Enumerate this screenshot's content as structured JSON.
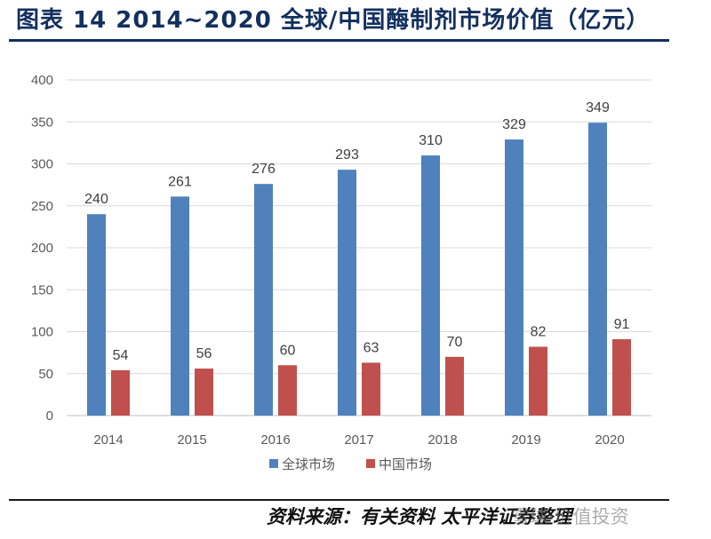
{
  "title": "图表 14 2014~2020 全球/中国酶制剂市场价值（亿元）",
  "source": "资料来源：有关资料 太平洋证券整理",
  "watermark": "雪球·价值投资",
  "colors": {
    "global": "#4f81bd",
    "china": "#c0504d",
    "grid": "#d9d9d9",
    "title": "#12305f"
  },
  "chart_data": {
    "type": "bar",
    "categories": [
      "2014",
      "2015",
      "2016",
      "2017",
      "2018",
      "2019",
      "2020"
    ],
    "series": [
      {
        "name": "全球市场",
        "values": [
          240,
          261,
          276,
          293,
          310,
          329,
          349
        ]
      },
      {
        "name": "中国市场",
        "values": [
          54,
          56,
          60,
          63,
          70,
          82,
          91
        ]
      }
    ],
    "title": "",
    "xlabel": "",
    "ylabel": "",
    "ylim": [
      0,
      400
    ],
    "yticks": [
      0,
      50,
      100,
      150,
      200,
      250,
      300,
      350,
      400
    ],
    "grid": true,
    "legend": "bottom"
  }
}
